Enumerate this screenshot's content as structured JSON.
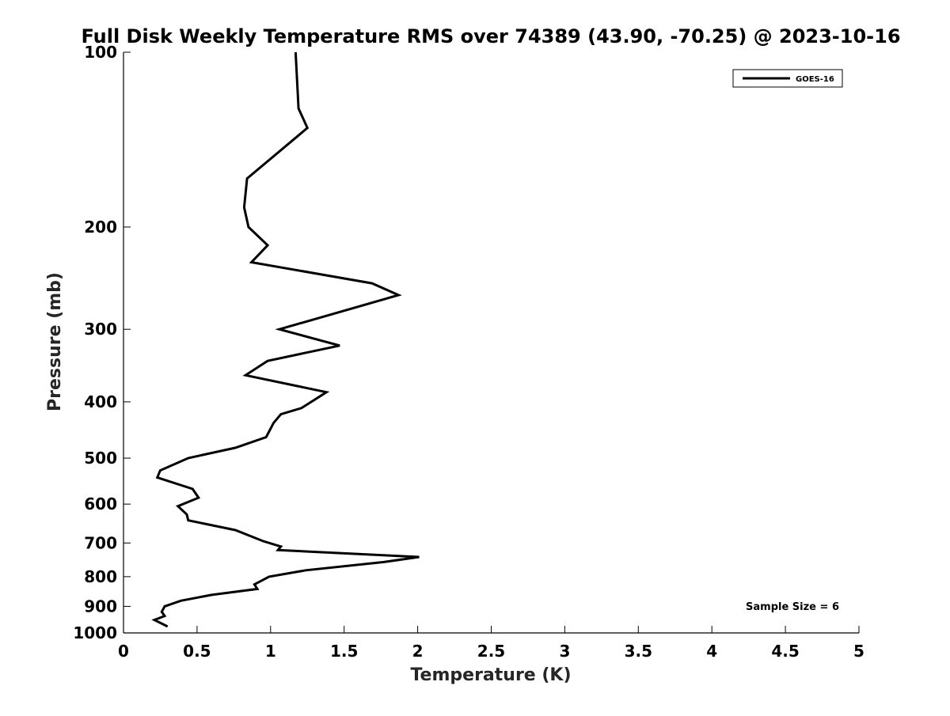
{
  "chart_data": {
    "type": "line",
    "title": "Full Disk Weekly Temperature RMS over 74389 (43.90, -70.25) @ 2023-10-16",
    "xlabel": "Temperature (K)",
    "ylabel": "Pressure (mb)",
    "xlim": [
      0,
      5
    ],
    "ylim": [
      1000,
      100
    ],
    "yscale": "log",
    "y_inverted": true,
    "x_ticks": [
      "0",
      "0.5",
      "1",
      "1.5",
      "2",
      "2.5",
      "3",
      "3.5",
      "4",
      "4.5",
      "5"
    ],
    "x_tick_values": [
      0,
      0.5,
      1,
      1.5,
      2,
      2.5,
      3,
      3.5,
      4,
      4.5,
      5
    ],
    "y_ticks": [
      "100",
      "200",
      "300",
      "400",
      "500",
      "600",
      "700",
      "800",
      "900",
      "1000"
    ],
    "y_tick_values": [
      100,
      200,
      300,
      400,
      500,
      600,
      700,
      800,
      900,
      1000
    ],
    "grid": false,
    "legend_position": "top-right",
    "series": [
      {
        "name": "GOES-16",
        "color": "#000000",
        "points": [
          [
            1.17,
            100
          ],
          [
            1.19,
            125
          ],
          [
            1.25,
            135
          ],
          [
            0.84,
            165
          ],
          [
            0.82,
            185
          ],
          [
            0.85,
            200
          ],
          [
            0.98,
            215
          ],
          [
            0.87,
            230
          ],
          [
            1.69,
            250
          ],
          [
            1.87,
            262
          ],
          [
            1.06,
            300
          ],
          [
            1.47,
            320
          ],
          [
            0.98,
            340
          ],
          [
            0.83,
            360
          ],
          [
            1.38,
            385
          ],
          [
            1.21,
            410
          ],
          [
            1.07,
            420
          ],
          [
            1.02,
            435
          ],
          [
            0.97,
            460
          ],
          [
            0.76,
            480
          ],
          [
            0.44,
            500
          ],
          [
            0.25,
            525
          ],
          [
            0.23,
            540
          ],
          [
            0.47,
            565
          ],
          [
            0.51,
            585
          ],
          [
            0.37,
            605
          ],
          [
            0.43,
            625
          ],
          [
            0.44,
            640
          ],
          [
            0.76,
            665
          ],
          [
            0.95,
            695
          ],
          [
            1.07,
            710
          ],
          [
            1.05,
            720
          ],
          [
            2.01,
            740
          ],
          [
            1.77,
            755
          ],
          [
            1.24,
            780
          ],
          [
            0.99,
            800
          ],
          [
            0.89,
            825
          ],
          [
            0.91,
            840
          ],
          [
            0.6,
            860
          ],
          [
            0.39,
            880
          ],
          [
            0.28,
            900
          ],
          [
            0.26,
            920
          ],
          [
            0.28,
            935
          ],
          [
            0.21,
            950
          ],
          [
            0.3,
            975
          ]
        ]
      }
    ],
    "annotations": [
      "Sample Size = 6"
    ]
  }
}
